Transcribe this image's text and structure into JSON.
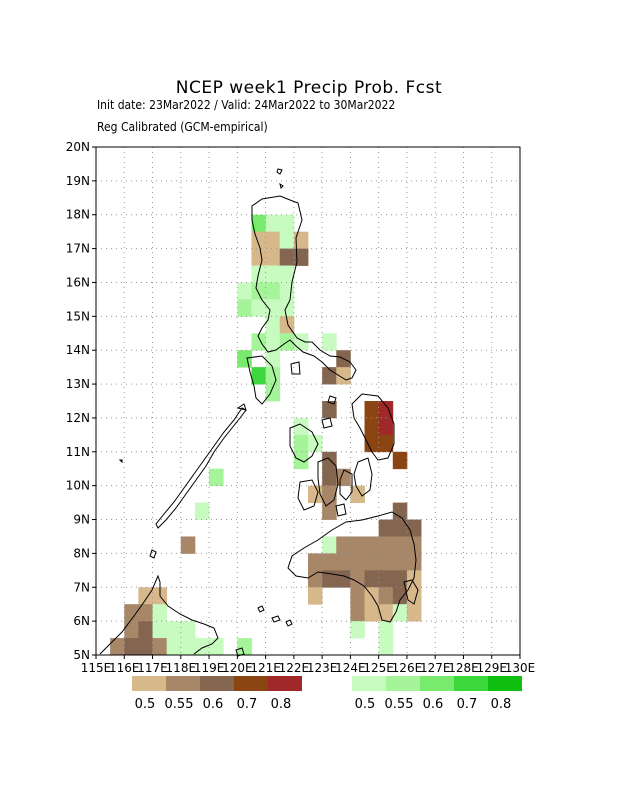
{
  "title": "NCEP week1 Precip Prob. Fcst",
  "subtitle1": "Init date: 23Mar2022 / Valid: 24Mar2022 to 30Mar2022",
  "subtitle2": "Reg Calibrated (GCM-empirical)",
  "map": {
    "lon_range": [
      115,
      130
    ],
    "lat_range": [
      5,
      20
    ],
    "lon_labels": [
      "115E",
      "116E",
      "117E",
      "118E",
      "119E",
      "120E",
      "121E",
      "122E",
      "123E",
      "124E",
      "125E",
      "126E",
      "127E",
      "128E",
      "129E",
      "130E"
    ],
    "lat_labels": [
      "5N",
      "6N",
      "7N",
      "8N",
      "9N",
      "10N",
      "11N",
      "12N",
      "13N",
      "14N",
      "15N",
      "16N",
      "17N",
      "18N",
      "19N",
      "20N"
    ],
    "grid": "dotted",
    "cell_size_deg": 0.5
  },
  "legend_dry": {
    "colors": [
      "#d6b88b",
      "#a88668",
      "#846650",
      "#8b4513",
      "#a02828"
    ],
    "labels": [
      "0.5",
      "0.55",
      "0.6",
      "0.7",
      "0.8"
    ]
  },
  "legend_wet": {
    "colors": [
      "#c8fbc0",
      "#a6f49a",
      "#78eb6e",
      "#3cd83c",
      "#10c010"
    ],
    "labels": [
      "0.5",
      "0.55",
      "0.6",
      "0.7",
      "0.8"
    ]
  },
  "cells": [
    {
      "lon": 120.75,
      "lat": 17.75,
      "cat": "wet",
      "lvl": 2
    },
    {
      "lon": 121.25,
      "lat": 17.75,
      "cat": "wet",
      "lvl": 0
    },
    {
      "lon": 121.75,
      "lat": 17.75,
      "cat": "wet",
      "lvl": 0
    },
    {
      "lon": 120.75,
      "lat": 17.25,
      "cat": "dry",
      "lvl": 0
    },
    {
      "lon": 121.25,
      "lat": 17.25,
      "cat": "dry",
      "lvl": 0
    },
    {
      "lon": 121.75,
      "lat": 17.25,
      "cat": "wet",
      "lvl": 0
    },
    {
      "lon": 122.25,
      "lat": 17.25,
      "cat": "dry",
      "lvl": 0
    },
    {
      "lon": 120.75,
      "lat": 16.75,
      "cat": "dry",
      "lvl": 0
    },
    {
      "lon": 121.25,
      "lat": 16.75,
      "cat": "dry",
      "lvl": 0
    },
    {
      "lon": 121.75,
      "lat": 16.75,
      "cat": "dry",
      "lvl": 2
    },
    {
      "lon": 122.25,
      "lat": 16.75,
      "cat": "dry",
      "lvl": 2
    },
    {
      "lon": 120.75,
      "lat": 16.25,
      "cat": "wet",
      "lvl": 0
    },
    {
      "lon": 121.25,
      "lat": 16.25,
      "cat": "wet",
      "lvl": 0
    },
    {
      "lon": 121.75,
      "lat": 16.25,
      "cat": "wet",
      "lvl": 0
    },
    {
      "lon": 120.25,
      "lat": 15.75,
      "cat": "wet",
      "lvl": 0
    },
    {
      "lon": 120.75,
      "lat": 15.75,
      "cat": "wet",
      "lvl": 1
    },
    {
      "lon": 121.25,
      "lat": 15.75,
      "cat": "wet",
      "lvl": 1
    },
    {
      "lon": 121.75,
      "lat": 15.75,
      "cat": "wet",
      "lvl": 0
    },
    {
      "lon": 120.25,
      "lat": 15.25,
      "cat": "wet",
      "lvl": 1
    },
    {
      "lon": 120.75,
      "lat": 15.25,
      "cat": "wet",
      "lvl": 0
    },
    {
      "lon": 121.25,
      "lat": 15.25,
      "cat": "wet",
      "lvl": 0
    },
    {
      "lon": 121.75,
      "lat": 15.25,
      "cat": "wet",
      "lvl": 0
    },
    {
      "lon": 121.25,
      "lat": 14.75,
      "cat": "wet",
      "lvl": 0
    },
    {
      "lon": 121.75,
      "lat": 14.75,
      "cat": "dry",
      "lvl": 0
    },
    {
      "lon": 120.75,
      "lat": 14.25,
      "cat": "wet",
      "lvl": 1
    },
    {
      "lon": 121.25,
      "lat": 14.25,
      "cat": "wet",
      "lvl": 0
    },
    {
      "lon": 121.75,
      "lat": 14.25,
      "cat": "wet",
      "lvl": 1
    },
    {
      "lon": 122.25,
      "lat": 14.25,
      "cat": "wet",
      "lvl": 0
    },
    {
      "lon": 123.25,
      "lat": 14.25,
      "cat": "wet",
      "lvl": 0
    },
    {
      "lon": 120.25,
      "lat": 13.75,
      "cat": "wet",
      "lvl": 2
    },
    {
      "lon": 121.25,
      "lat": 13.75,
      "cat": "wet",
      "lvl": 0
    },
    {
      "lon": 123.75,
      "lat": 13.75,
      "cat": "dry",
      "lvl": 2
    },
    {
      "lon": 120.75,
      "lat": 13.25,
      "cat": "wet",
      "lvl": 3
    },
    {
      "lon": 121.25,
      "lat": 13.25,
      "cat": "wet",
      "lvl": 1
    },
    {
      "lon": 123.25,
      "lat": 13.25,
      "cat": "dry",
      "lvl": 2
    },
    {
      "lon": 123.75,
      "lat": 13.25,
      "cat": "dry",
      "lvl": 0
    },
    {
      "lon": 121.25,
      "lat": 12.75,
      "cat": "wet",
      "lvl": 1
    },
    {
      "lon": 123.25,
      "lat": 12.25,
      "cat": "dry",
      "lvl": 2
    },
    {
      "lon": 124.75,
      "lat": 12.25,
      "cat": "dry",
      "lvl": 3
    },
    {
      "lon": 125.25,
      "lat": 12.25,
      "cat": "dry",
      "lvl": 4
    },
    {
      "lon": 122.25,
      "lat": 11.75,
      "cat": "wet",
      "lvl": 0
    },
    {
      "lon": 124.75,
      "lat": 11.75,
      "cat": "dry",
      "lvl": 3
    },
    {
      "lon": 125.25,
      "lat": 11.75,
      "cat": "dry",
      "lvl": 4
    },
    {
      "lon": 122.25,
      "lat": 11.25,
      "cat": "wet",
      "lvl": 1
    },
    {
      "lon": 122.75,
      "lat": 11.25,
      "cat": "wet",
      "lvl": 0
    },
    {
      "lon": 124.75,
      "lat": 11.25,
      "cat": "dry",
      "lvl": 3
    },
    {
      "lon": 125.25,
      "lat": 11.25,
      "cat": "dry",
      "lvl": 3
    },
    {
      "lon": 122.25,
      "lat": 10.75,
      "cat": "wet",
      "lvl": 1
    },
    {
      "lon": 123.25,
      "lat": 10.75,
      "cat": "dry",
      "lvl": 2
    },
    {
      "lon": 125.75,
      "lat": 10.75,
      "cat": "dry",
      "lvl": 3
    },
    {
      "lon": 123.25,
      "lat": 10.25,
      "cat": "dry",
      "lvl": 2
    },
    {
      "lon": 123.75,
      "lat": 10.25,
      "cat": "dry",
      "lvl": 1
    },
    {
      "lon": 122.75,
      "lat": 9.75,
      "cat": "dry",
      "lvl": 0
    },
    {
      "lon": 123.25,
      "lat": 9.75,
      "cat": "dry",
      "lvl": 1
    },
    {
      "lon": 124.25,
      "lat": 9.75,
      "cat": "dry",
      "lvl": 0
    },
    {
      "lon": 123.25,
      "lat": 9.25,
      "cat": "dry",
      "lvl": 1
    },
    {
      "lon": 125.75,
      "lat": 9.25,
      "cat": "dry",
      "lvl": 2
    },
    {
      "lon": 125.25,
      "lat": 8.75,
      "cat": "dry",
      "lvl": 2
    },
    {
      "lon": 125.75,
      "lat": 8.75,
      "cat": "dry",
      "lvl": 2
    },
    {
      "lon": 126.25,
      "lat": 8.75,
      "cat": "dry",
      "lvl": 2
    },
    {
      "lon": 123.25,
      "lat": 8.25,
      "cat": "wet",
      "lvl": 0
    },
    {
      "lon": 123.75,
      "lat": 8.25,
      "cat": "dry",
      "lvl": 1
    },
    {
      "lon": 124.25,
      "lat": 8.25,
      "cat": "dry",
      "lvl": 1
    },
    {
      "lon": 124.75,
      "lat": 8.25,
      "cat": "dry",
      "lvl": 1
    },
    {
      "lon": 125.25,
      "lat": 8.25,
      "cat": "dry",
      "lvl": 1
    },
    {
      "lon": 125.75,
      "lat": 8.25,
      "cat": "dry",
      "lvl": 1
    },
    {
      "lon": 126.25,
      "lat": 8.25,
      "cat": "dry",
      "lvl": 1
    },
    {
      "lon": 122.75,
      "lat": 7.75,
      "cat": "dry",
      "lvl": 1
    },
    {
      "lon": 123.25,
      "lat": 7.75,
      "cat": "dry",
      "lvl": 1
    },
    {
      "lon": 123.75,
      "lat": 7.75,
      "cat": "dry",
      "lvl": 1
    },
    {
      "lon": 124.25,
      "lat": 7.75,
      "cat": "dry",
      "lvl": 1
    },
    {
      "lon": 124.75,
      "lat": 7.75,
      "cat": "dry",
      "lvl": 1
    },
    {
      "lon": 125.25,
      "lat": 7.75,
      "cat": "dry",
      "lvl": 1
    },
    {
      "lon": 125.75,
      "lat": 7.75,
      "cat": "dry",
      "lvl": 1
    },
    {
      "lon": 126.25,
      "lat": 7.75,
      "cat": "dry",
      "lvl": 1
    },
    {
      "lon": 122.75,
      "lat": 7.25,
      "cat": "dry",
      "lvl": 1
    },
    {
      "lon": 123.25,
      "lat": 7.25,
      "cat": "dry",
      "lvl": 2
    },
    {
      "lon": 123.75,
      "lat": 7.25,
      "cat": "dry",
      "lvl": 2
    },
    {
      "lon": 124.25,
      "lat": 7.25,
      "cat": "dry",
      "lvl": 1
    },
    {
      "lon": 124.75,
      "lat": 7.25,
      "cat": "dry",
      "lvl": 2
    },
    {
      "lon": 125.25,
      "lat": 7.25,
      "cat": "dry",
      "lvl": 2
    },
    {
      "lon": 125.75,
      "lat": 7.25,
      "cat": "dry",
      "lvl": 2
    },
    {
      "lon": 126.25,
      "lat": 7.25,
      "cat": "dry",
      "lvl": 0
    },
    {
      "lon": 122.75,
      "lat": 6.75,
      "cat": "dry",
      "lvl": 0
    },
    {
      "lon": 124.25,
      "lat": 6.75,
      "cat": "dry",
      "lvl": 1
    },
    {
      "lon": 124.75,
      "lat": 6.75,
      "cat": "dry",
      "lvl": 0
    },
    {
      "lon": 125.25,
      "lat": 6.75,
      "cat": "dry",
      "lvl": 1
    },
    {
      "lon": 125.75,
      "lat": 6.75,
      "cat": "dry",
      "lvl": 2
    },
    {
      "lon": 126.25,
      "lat": 6.75,
      "cat": "dry",
      "lvl": 0
    },
    {
      "lon": 124.25,
      "lat": 6.25,
      "cat": "dry",
      "lvl": 1
    },
    {
      "lon": 124.75,
      "lat": 6.25,
      "cat": "dry",
      "lvl": 0
    },
    {
      "lon": 125.25,
      "lat": 6.25,
      "cat": "dry",
      "lvl": 0
    },
    {
      "lon": 125.75,
      "lat": 6.25,
      "cat": "wet",
      "lvl": 0
    },
    {
      "lon": 126.25,
      "lat": 6.25,
      "cat": "dry",
      "lvl": 0
    },
    {
      "lon": 124.25,
      "lat": 5.75,
      "cat": "wet",
      "lvl": 0
    },
    {
      "lon": 125.25,
      "lat": 5.75,
      "cat": "wet",
      "lvl": 0
    },
    {
      "lon": 125.25,
      "lat": 5.25,
      "cat": "wet",
      "lvl": 0
    },
    {
      "lon": 119.25,
      "lat": 10.25,
      "cat": "wet",
      "lvl": 1
    },
    {
      "lon": 118.75,
      "lat": 9.25,
      "cat": "wet",
      "lvl": 0
    },
    {
      "lon": 118.25,
      "lat": 8.25,
      "cat": "dry",
      "lvl": 1
    },
    {
      "lon": 116.75,
      "lat": 6.75,
      "cat": "dry",
      "lvl": 0
    },
    {
      "lon": 117.25,
      "lat": 6.75,
      "cat": "dry",
      "lvl": 0
    },
    {
      "lon": 116.25,
      "lat": 6.25,
      "cat": "dry",
      "lvl": 1
    },
    {
      "lon": 116.75,
      "lat": 6.25,
      "cat": "dry",
      "lvl": 1
    },
    {
      "lon": 117.25,
      "lat": 6.25,
      "cat": "wet",
      "lvl": 0
    },
    {
      "lon": 116.25,
      "lat": 5.75,
      "cat": "dry",
      "lvl": 1
    },
    {
      "lon": 116.75,
      "lat": 5.75,
      "cat": "dry",
      "lvl": 2
    },
    {
      "lon": 117.25,
      "lat": 5.75,
      "cat": "wet",
      "lvl": 0
    },
    {
      "lon": 117.75,
      "lat": 5.75,
      "cat": "wet",
      "lvl": 0
    },
    {
      "lon": 118.25,
      "lat": 5.75,
      "cat": "wet",
      "lvl": 0
    },
    {
      "lon": 115.75,
      "lat": 5.25,
      "cat": "dry",
      "lvl": 1
    },
    {
      "lon": 116.25,
      "lat": 5.25,
      "cat": "dry",
      "lvl": 2
    },
    {
      "lon": 116.75,
      "lat": 5.25,
      "cat": "dry",
      "lvl": 2
    },
    {
      "lon": 117.25,
      "lat": 5.25,
      "cat": "dry",
      "lvl": 1
    },
    {
      "lon": 117.75,
      "lat": 5.25,
      "cat": "wet",
      "lvl": 0
    },
    {
      "lon": 118.25,
      "lat": 5.25,
      "cat": "wet",
      "lvl": 0
    },
    {
      "lon": 118.75,
      "lat": 5.25,
      "cat": "wet",
      "lvl": 0
    },
    {
      "lon": 119.25,
      "lat": 5.25,
      "cat": "wet",
      "lvl": 0
    },
    {
      "lon": 120.25,
      "lat": 5.25,
      "cat": "wet",
      "lvl": 1
    }
  ]
}
